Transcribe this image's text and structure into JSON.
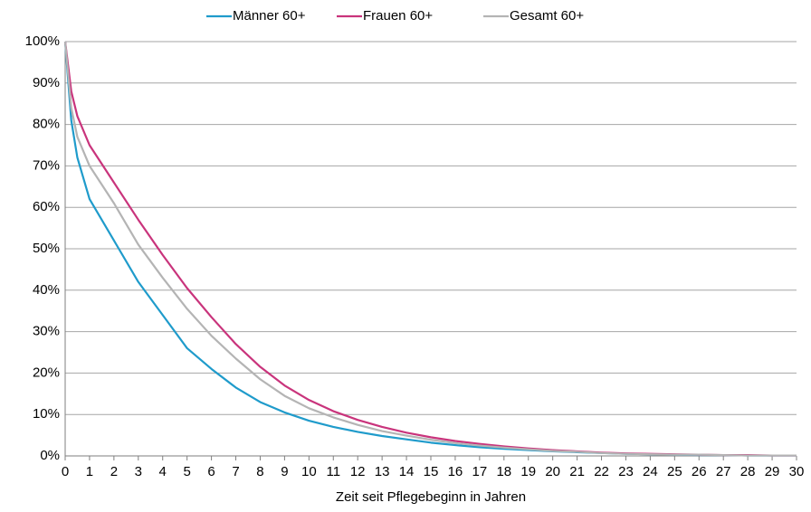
{
  "chart_data": {
    "type": "line",
    "x_label": "Zeit seit Pflegebeginn in Jahren",
    "x": [
      0,
      0.25,
      0.5,
      1,
      2,
      3,
      4,
      5,
      6,
      7,
      8,
      9,
      10,
      11,
      12,
      13,
      14,
      15,
      16,
      17,
      18,
      19,
      20,
      21,
      22,
      23,
      24,
      25,
      26,
      27,
      28,
      29,
      30
    ],
    "series": [
      {
        "name": "Männer 60+",
        "color": "#1f9bcb",
        "values": [
          100,
          81,
          72,
          62,
          52,
          42,
          34,
          26,
          21,
          16.5,
          13,
          10.5,
          8.5,
          7,
          5.8,
          4.8,
          4,
          3.2,
          2.6,
          2.1,
          1.7,
          1.4,
          1.1,
          0.9,
          0.7,
          0.5,
          0.4,
          0.3,
          0.2,
          0.2,
          0.1,
          0.1,
          0.1
        ]
      },
      {
        "name": "Frauen 60+",
        "color": "#c9347c",
        "values": [
          100,
          88,
          82,
          75,
          66,
          57,
          48.5,
          40.5,
          33.5,
          27,
          21.5,
          17,
          13.5,
          10.8,
          8.7,
          7,
          5.6,
          4.5,
          3.6,
          2.9,
          2.3,
          1.8,
          1.4,
          1.1,
          0.8,
          0.6,
          0.5,
          0.4,
          0.3,
          0.2,
          0.2,
          0.1,
          0.1
        ]
      },
      {
        "name": "Gesamt 60+",
        "color": "#b4b4b4",
        "values": [
          100,
          84,
          77,
          70,
          61,
          51,
          43,
          35.5,
          29,
          23.5,
          18.5,
          14.5,
          11.5,
          9.3,
          7.5,
          6,
          4.9,
          3.9,
          3.1,
          2.5,
          2,
          1.6,
          1.2,
          1,
          0.7,
          0.5,
          0.4,
          0.3,
          0.3,
          0.2,
          0.1,
          0.1,
          0.1
        ]
      }
    ],
    "xlim": [
      0,
      30
    ],
    "xticks": [
      0,
      1,
      2,
      3,
      4,
      5,
      6,
      7,
      8,
      9,
      10,
      11,
      12,
      13,
      14,
      15,
      16,
      17,
      18,
      19,
      20,
      21,
      22,
      23,
      24,
      25,
      26,
      27,
      28,
      29,
      30
    ],
    "ylim": [
      0,
      100
    ],
    "yticks": [
      {
        "value": 0,
        "label": "0%"
      },
      {
        "value": 10,
        "label": "10%"
      },
      {
        "value": 20,
        "label": "20%"
      },
      {
        "value": 30,
        "label": "30%"
      },
      {
        "value": 40,
        "label": "40%"
      },
      {
        "value": 50,
        "label": "50%"
      },
      {
        "value": 60,
        "label": "60%"
      },
      {
        "value": 70,
        "label": "70%"
      },
      {
        "value": 80,
        "label": "80%"
      },
      {
        "value": 90,
        "label": "90%"
      },
      {
        "value": 100,
        "label": "100%"
      }
    ],
    "grid": true,
    "legend": "top"
  }
}
